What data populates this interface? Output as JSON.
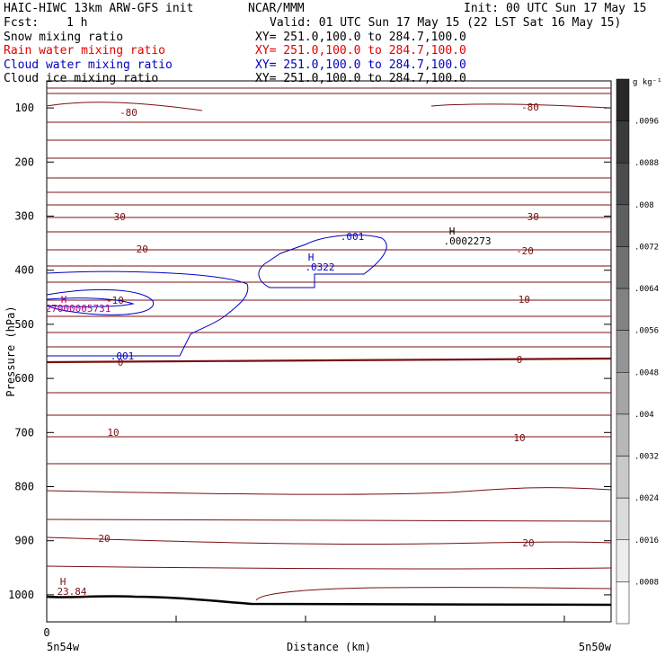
{
  "header": {
    "model": "HAIC-HIWC 13km ARW-GFS init",
    "center": "NCAR/MMM",
    "init": "Init: 00 UTC Sun 17 May 15",
    "fcst_label": "Fcst:",
    "fcst_value": "1 h",
    "valid": "Valid: 01 UTC Sun 17 May 15 (22 LST Sat 16 May 15)"
  },
  "fields": [
    {
      "name": "Snow mixing ratio",
      "xy": "XY= 251.0,100.0 to 284.7,100.0",
      "color": "#000000"
    },
    {
      "name": "Rain water mixing ratio",
      "xy": "XY= 251.0,100.0 to 284.7,100.0",
      "color": "#e00000"
    },
    {
      "name": "Cloud water mixing ratio",
      "xy": "XY= 251.0,100.0 to 284.7,100.0",
      "color": "#0000c0"
    },
    {
      "name": "Cloud ice mixing ratio",
      "xy": "XY= 251.0,100.0 to 284.7,100.0",
      "color": "#000000"
    }
  ],
  "chart_data": {
    "type": "contour cross-section",
    "ylabel": "Pressure (hPa)",
    "xlabel": "Distance (km)",
    "y_ticks": [
      100,
      200,
      300,
      400,
      500,
      600,
      700,
      800,
      900,
      1000
    ],
    "ylim": [
      1050,
      50
    ],
    "x_tick_zero": "0",
    "x_left_label": "5n54w",
    "x_right_label": "5n50w",
    "colorbar": {
      "unit": "g kg⁻¹",
      "labels": [
        ".0096",
        ".0088",
        ".008",
        ".0072",
        ".0064",
        ".0056",
        ".0048",
        ".004",
        ".0032",
        ".0024",
        ".0016",
        ".0008"
      ]
    },
    "temperature_isotherm_labels": [
      "-80",
      "-80",
      "-30",
      "-30",
      "-20",
      "-20",
      "-10",
      "-10",
      "0",
      "0",
      "10",
      "10",
      "20",
      "20"
    ],
    "cloud_water_contour_labels": [
      ".001",
      ".001"
    ],
    "maxima": [
      {
        "mark": "H",
        "value": ".0322"
      },
      {
        "mark": "H",
        "value": ".0002273"
      },
      {
        "mark": "H",
        "value": "23.84"
      },
      {
        "mark": "H",
        "value": "27000005731"
      }
    ],
    "colors": {
      "temperature": "#7a1010",
      "cloud_water": "#0000c0",
      "rain": "#c00080",
      "terrain": "#000000"
    }
  }
}
